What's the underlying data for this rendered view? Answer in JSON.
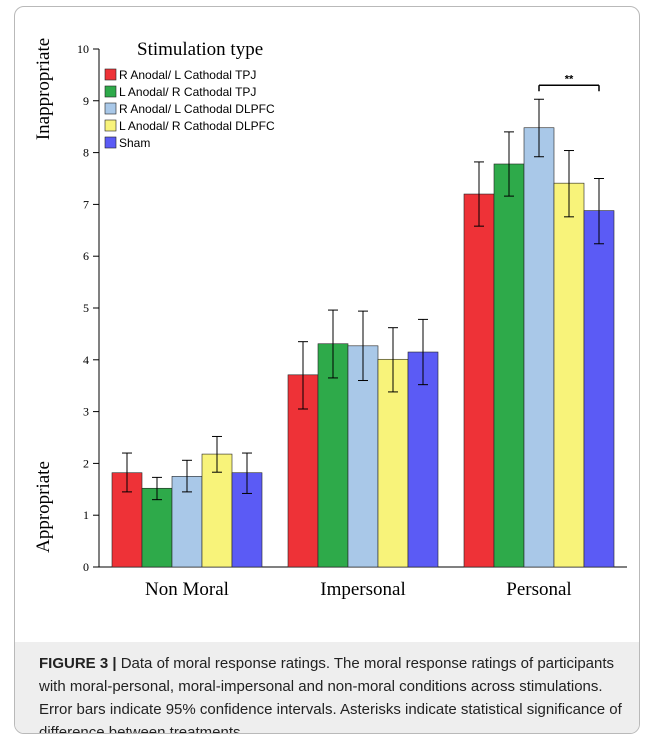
{
  "figure": {
    "label": "FIGURE 3 |",
    "caption": "Data of moral response ratings. The moral response ratings of participants with moral-personal, moral-impersonal and non-moral conditions across stimulations. Error bars indicate 95% confidence intervals. Asterisks indicate statistical significance of difference between treatments."
  },
  "chart_data": {
    "type": "bar",
    "title": "",
    "xlabel": "",
    "ylabel": "",
    "ylabel_top": "Inappropriate",
    "ylabel_bottom": "Appropriate",
    "ylim": [
      0,
      10
    ],
    "yticks": [
      "0",
      "1",
      "2",
      "3",
      "4",
      "5",
      "6",
      "7",
      "8",
      "9",
      "10"
    ],
    "grid": false,
    "categories": [
      "Non Moral",
      "Impersonal",
      "Personal"
    ],
    "legend": {
      "title": "Stimulation type",
      "placement": "top-left"
    },
    "series": [
      {
        "name": "R Anodal/ L Cathodal TPJ",
        "color": "#ee3237",
        "values": [
          1.82,
          3.71,
          7.2
        ],
        "ci": [
          [
            1.45,
            2.2
          ],
          [
            3.05,
            4.35
          ],
          [
            6.58,
            7.82
          ]
        ]
      },
      {
        "name": "L Anodal/ R Cathodal TPJ",
        "color": "#2eaa4a",
        "values": [
          1.52,
          4.31,
          7.78
        ],
        "ci": [
          [
            1.3,
            1.73
          ],
          [
            3.65,
            4.96
          ],
          [
            7.16,
            8.4
          ]
        ]
      },
      {
        "name": "R Anodal/ L Cathodal DLPFC",
        "color": "#a9c8e8",
        "values": [
          1.75,
          4.27,
          8.48
        ],
        "ci": [
          [
            1.45,
            2.06
          ],
          [
            3.6,
            4.94
          ],
          [
            7.92,
            9.03
          ]
        ]
      },
      {
        "name": "L Anodal/ R Cathodal DLPFC",
        "color": "#f8f37a",
        "values": [
          2.18,
          4.01,
          7.41
        ],
        "ci": [
          [
            1.83,
            2.52
          ],
          [
            3.38,
            4.62
          ],
          [
            6.76,
            8.04
          ]
        ]
      },
      {
        "name": "Sham",
        "color": "#5b5bf5",
        "values": [
          1.82,
          4.15,
          6.88
        ],
        "ci": [
          [
            1.42,
            2.2
          ],
          [
            3.52,
            4.78
          ],
          [
            6.24,
            7.5
          ]
        ]
      }
    ],
    "annotations": [
      {
        "text": "**",
        "category": "Personal",
        "from_series": 2,
        "to_series": 4,
        "y": 9.3
      }
    ]
  }
}
